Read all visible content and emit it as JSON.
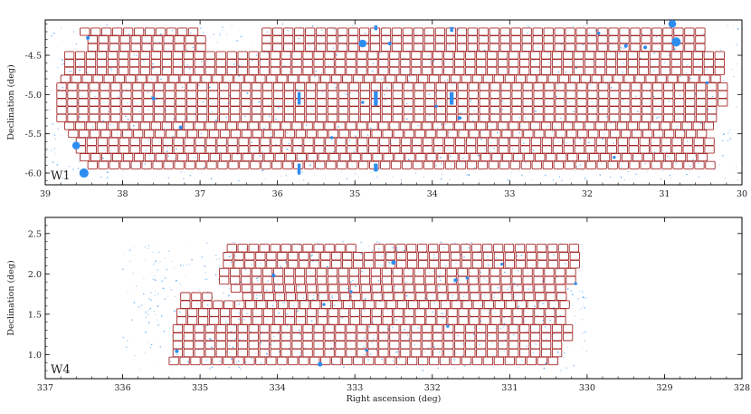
{
  "chart_data": [
    {
      "type": "scatter",
      "field_label": "W1",
      "xlabel": "",
      "ylabel": "Declination (deg)",
      "xlim": [
        39,
        30
      ],
      "ylim": [
        -6.15,
        -4.05
      ],
      "xticks": [
        "39",
        "38",
        "37",
        "36",
        "35",
        "34",
        "33",
        "32",
        "31",
        "30"
      ],
      "xtick_values": [
        39,
        38,
        37,
        36,
        35,
        34,
        33,
        32,
        31,
        30
      ],
      "yticks": [
        "-4.5",
        "-5.0",
        "-5.5",
        "-6.0"
      ],
      "ytick_values": [
        -4.5,
        -5.0,
        -5.5,
        -6.0
      ],
      "pointing_color": "#a52a2a",
      "mask_color": "#2e8ef0",
      "pointing_size_deg": [
        0.14,
        0.095
      ],
      "pointing_rows": [
        {
          "dec": -4.2,
          "ra_start": 38.55,
          "ra_end": 36.95
        },
        {
          "dec": -4.2,
          "ra_start": 36.2,
          "ra_end": 30.4
        },
        {
          "dec": -4.3,
          "ra_start": 38.45,
          "ra_end": 36.95
        },
        {
          "dec": -4.3,
          "ra_start": 36.2,
          "ra_end": 30.4
        },
        {
          "dec": -4.4,
          "ra_start": 38.45,
          "ra_end": 36.95
        },
        {
          "dec": -4.4,
          "ra_start": 36.2,
          "ra_end": 30.4
        },
        {
          "dec": -4.5,
          "ra_start": 38.75,
          "ra_end": 30.2
        },
        {
          "dec": -4.6,
          "ra_start": 38.75,
          "ra_end": 30.2
        },
        {
          "dec": -4.7,
          "ra_start": 38.75,
          "ra_end": 30.2
        },
        {
          "dec": -4.8,
          "ra_start": 38.8,
          "ra_end": 30.2
        },
        {
          "dec": -4.9,
          "ra_start": 38.85,
          "ra_end": 30.15
        },
        {
          "dec": -5.0,
          "ra_start": 38.85,
          "ra_end": 30.15
        },
        {
          "dec": -5.1,
          "ra_start": 38.85,
          "ra_end": 30.15
        },
        {
          "dec": -5.2,
          "ra_start": 38.85,
          "ra_end": 30.25
        },
        {
          "dec": -5.3,
          "ra_start": 38.85,
          "ra_end": 30.35
        },
        {
          "dec": -5.4,
          "ra_start": 38.75,
          "ra_end": 30.4
        },
        {
          "dec": -5.5,
          "ra_start": 38.7,
          "ra_end": 30.4
        },
        {
          "dec": -5.6,
          "ra_start": 38.6,
          "ra_end": 30.4
        },
        {
          "dec": -5.7,
          "ra_start": 38.6,
          "ra_end": 30.4
        },
        {
          "dec": -5.8,
          "ra_start": 38.55,
          "ra_end": 30.4
        },
        {
          "dec": -5.9,
          "ra_start": 38.45,
          "ra_end": 30.4
        }
      ],
      "masks": [
        {
          "shape": "circle",
          "ra": 38.5,
          "dec": -6.0,
          "r_deg": 0.06
        },
        {
          "shape": "circle",
          "ra": 38.6,
          "dec": -5.65,
          "r_deg": 0.05
        },
        {
          "shape": "circle",
          "ra": 34.9,
          "dec": -4.35,
          "r_deg": 0.05
        },
        {
          "shape": "circle",
          "ra": 30.9,
          "dec": -4.1,
          "r_deg": 0.05
        },
        {
          "shape": "circle",
          "ra": 30.85,
          "dec": -4.33,
          "r_deg": 0.06
        },
        {
          "shape": "circle",
          "ra": 38.45,
          "dec": -4.28,
          "r_deg": 0.025
        },
        {
          "shape": "circle",
          "ra": 37.6,
          "dec": -5.05,
          "r_deg": 0.025
        },
        {
          "shape": "circle",
          "ra": 37.25,
          "dec": -5.42,
          "r_deg": 0.025
        },
        {
          "shape": "circle",
          "ra": 34.55,
          "dec": -4.35,
          "r_deg": 0.025
        },
        {
          "shape": "circle",
          "ra": 34.9,
          "dec": -5.1,
          "r_deg": 0.02
        },
        {
          "shape": "circle",
          "ra": 33.65,
          "dec": -5.3,
          "r_deg": 0.025
        },
        {
          "shape": "circle",
          "ra": 31.5,
          "dec": -4.38,
          "r_deg": 0.025
        },
        {
          "shape": "circle",
          "ra": 31.25,
          "dec": -4.4,
          "r_deg": 0.025
        },
        {
          "shape": "circle",
          "ra": 30.45,
          "dec": -4.85,
          "r_deg": 0.02
        },
        {
          "shape": "circle",
          "ra": 31.85,
          "dec": -4.22,
          "r_deg": 0.02
        },
        {
          "shape": "circle",
          "ra": 35.3,
          "dec": -5.55,
          "r_deg": 0.02
        },
        {
          "shape": "circle",
          "ra": 31.65,
          "dec": -5.8,
          "r_deg": 0.02
        },
        {
          "shape": "circle",
          "ra": 33.95,
          "dec": -5.15,
          "r_deg": 0.02
        },
        {
          "shape": "rect",
          "ra": 35.72,
          "dec": -5.05,
          "w_deg": 0.04,
          "h_deg": 0.16
        },
        {
          "shape": "rect",
          "ra": 34.73,
          "dec": -5.05,
          "w_deg": 0.05,
          "h_deg": 0.18
        },
        {
          "shape": "rect",
          "ra": 33.75,
          "dec": -5.05,
          "w_deg": 0.05,
          "h_deg": 0.16
        },
        {
          "shape": "rect",
          "ra": 34.73,
          "dec": -4.15,
          "w_deg": 0.04,
          "h_deg": 0.06
        },
        {
          "shape": "rect",
          "ra": 33.75,
          "dec": -4.17,
          "w_deg": 0.04,
          "h_deg": 0.06
        },
        {
          "shape": "rect",
          "ra": 35.72,
          "dec": -5.95,
          "w_deg": 0.04,
          "h_deg": 0.14
        },
        {
          "shape": "rect",
          "ra": 34.73,
          "dec": -5.93,
          "w_deg": 0.05,
          "h_deg": 0.1
        }
      ],
      "background_scatter": {
        "ra_range": [
          38.95,
          30.05
        ],
        "dec_range": [
          -6.1,
          -4.1
        ],
        "count": 900
      }
    },
    {
      "type": "scatter",
      "field_label": "W4",
      "xlabel": "Right ascension (deg)",
      "ylabel": "Declination (deg)",
      "xlim": [
        337,
        328
      ],
      "ylim": [
        0.7,
        2.7
      ],
      "xticks": [
        "337",
        "336",
        "335",
        "334",
        "333",
        "332",
        "331",
        "330",
        "329",
        "328"
      ],
      "xtick_values": [
        337,
        336,
        335,
        334,
        333,
        332,
        331,
        330,
        329,
        328
      ],
      "yticks": [
        "2.5",
        "2.0",
        "1.5",
        "1.0"
      ],
      "ytick_values": [
        2.5,
        2.0,
        1.5,
        1.0
      ],
      "pointing_color": "#a52a2a",
      "mask_color": "#2e8ef0",
      "pointing_size_deg": [
        0.14,
        0.095
      ],
      "pointing_rows": [
        {
          "dec": 2.32,
          "ra_start": 334.65,
          "ra_end": 332.95
        },
        {
          "dec": 2.32,
          "ra_start": 332.75,
          "ra_end": 330.1
        },
        {
          "dec": 2.22,
          "ra_start": 334.7,
          "ra_end": 330.1
        },
        {
          "dec": 2.12,
          "ra_start": 334.7,
          "ra_end": 330.1
        },
        {
          "dec": 2.02,
          "ra_start": 334.75,
          "ra_end": 330.15
        },
        {
          "dec": 1.92,
          "ra_start": 334.75,
          "ra_end": 330.2
        },
        {
          "dec": 1.82,
          "ra_start": 334.6,
          "ra_end": 330.2
        },
        {
          "dec": 1.72,
          "ra_start": 335.25,
          "ra_end": 334.85
        },
        {
          "dec": 1.72,
          "ra_start": 334.45,
          "ra_end": 330.25
        },
        {
          "dec": 1.62,
          "ra_start": 335.25,
          "ra_end": 330.2
        },
        {
          "dec": 1.52,
          "ra_start": 335.3,
          "ra_end": 330.2
        },
        {
          "dec": 1.42,
          "ra_start": 335.3,
          "ra_end": 330.2
        },
        {
          "dec": 1.32,
          "ra_start": 335.35,
          "ra_end": 330.2
        },
        {
          "dec": 1.22,
          "ra_start": 335.35,
          "ra_end": 330.2
        },
        {
          "dec": 1.12,
          "ra_start": 335.35,
          "ra_end": 330.25
        },
        {
          "dec": 1.02,
          "ra_start": 335.35,
          "ra_end": 330.25
        },
        {
          "dec": 0.92,
          "ra_start": 335.4,
          "ra_end": 330.3
        }
      ],
      "masks": [
        {
          "shape": "circle",
          "ra": 333.45,
          "dec": 0.88,
          "r_deg": 0.03
        },
        {
          "shape": "circle",
          "ra": 332.5,
          "dec": 2.14,
          "r_deg": 0.03
        },
        {
          "shape": "circle",
          "ra": 335.3,
          "dec": 1.04,
          "r_deg": 0.025
        },
        {
          "shape": "circle",
          "ra": 334.05,
          "dec": 1.98,
          "r_deg": 0.025
        },
        {
          "shape": "circle",
          "ra": 333.05,
          "dec": 1.78,
          "r_deg": 0.02
        },
        {
          "shape": "circle",
          "ra": 331.7,
          "dec": 1.92,
          "r_deg": 0.025
        },
        {
          "shape": "circle",
          "ra": 331.55,
          "dec": 1.95,
          "r_deg": 0.02
        },
        {
          "shape": "circle",
          "ra": 333.4,
          "dec": 1.62,
          "r_deg": 0.02
        },
        {
          "shape": "circle",
          "ra": 331.1,
          "dec": 2.12,
          "r_deg": 0.02
        },
        {
          "shape": "circle",
          "ra": 330.15,
          "dec": 1.88,
          "r_deg": 0.02
        },
        {
          "shape": "circle",
          "ra": 332.85,
          "dec": 1.05,
          "r_deg": 0.02
        },
        {
          "shape": "circle",
          "ra": 331.8,
          "dec": 1.35,
          "r_deg": 0.02
        }
      ],
      "background_scatter": {
        "ra_range": [
          336.0,
          330.0
        ],
        "dec_range": [
          0.8,
          2.4
        ],
        "count": 800
      }
    }
  ]
}
